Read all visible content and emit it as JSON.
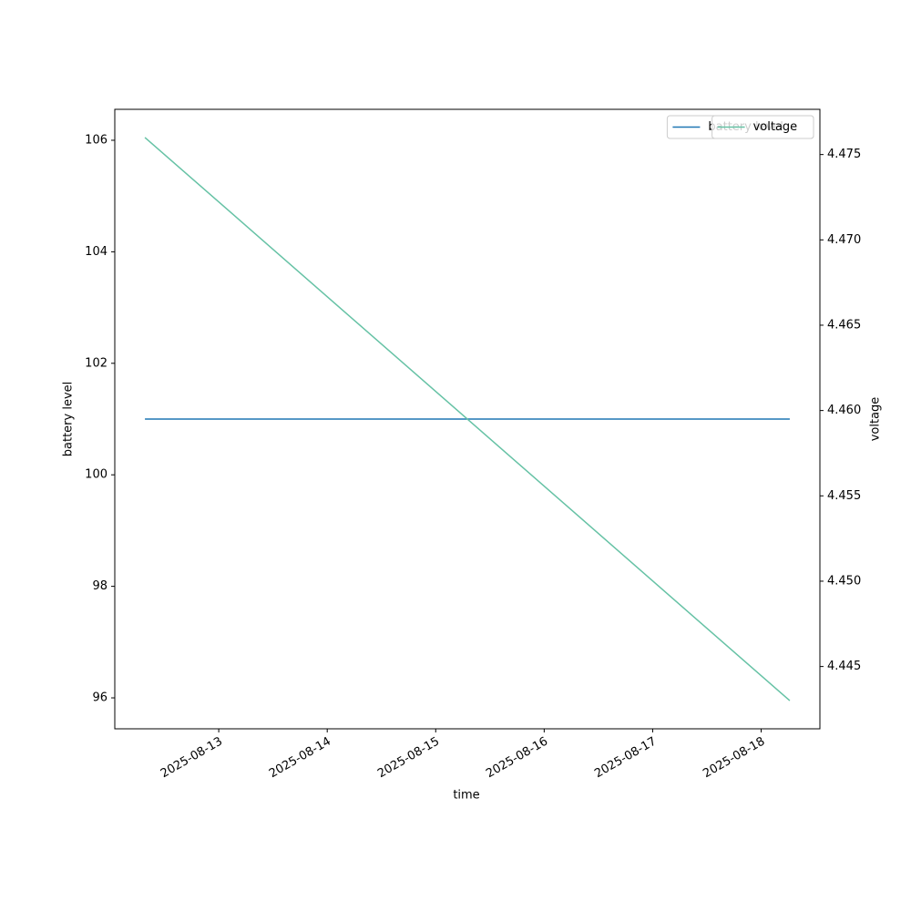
{
  "chart_data": {
    "type": "line",
    "x": [
      "2025-08-12T07:40",
      "2025-08-18T06:20"
    ],
    "xlim": [
      "2025-08-12T01:00",
      "2025-08-18T13:00"
    ],
    "xticks": [
      "2025-08-13",
      "2025-08-14",
      "2025-08-15",
      "2025-08-16",
      "2025-08-17",
      "2025-08-18"
    ],
    "xlabel": "time",
    "ylabel": "battery level",
    "y2label": "voltage",
    "ylim": [
      95.445,
      106.555
    ],
    "yticks": [
      96,
      98,
      100,
      102,
      104,
      106
    ],
    "y2lim": [
      4.44135,
      4.47765
    ],
    "y2ticks": [
      4.445,
      {
        "value": 4.45,
        "label": "4.450"
      },
      4.455,
      {
        "value": 4.46,
        "label": "4.460"
      },
      4.465,
      {
        "value": 4.47,
        "label": "4.470"
      },
      4.475
    ],
    "legend": "upper right",
    "series": [
      {
        "name": "battery level",
        "color": "#1f77b4",
        "values": [
          101,
          101
        ]
      },
      {
        "name": "voltage",
        "color": "#66c2a5",
        "axis": "y2",
        "values": [
          4.476,
          4.443
        ]
      }
    ]
  }
}
